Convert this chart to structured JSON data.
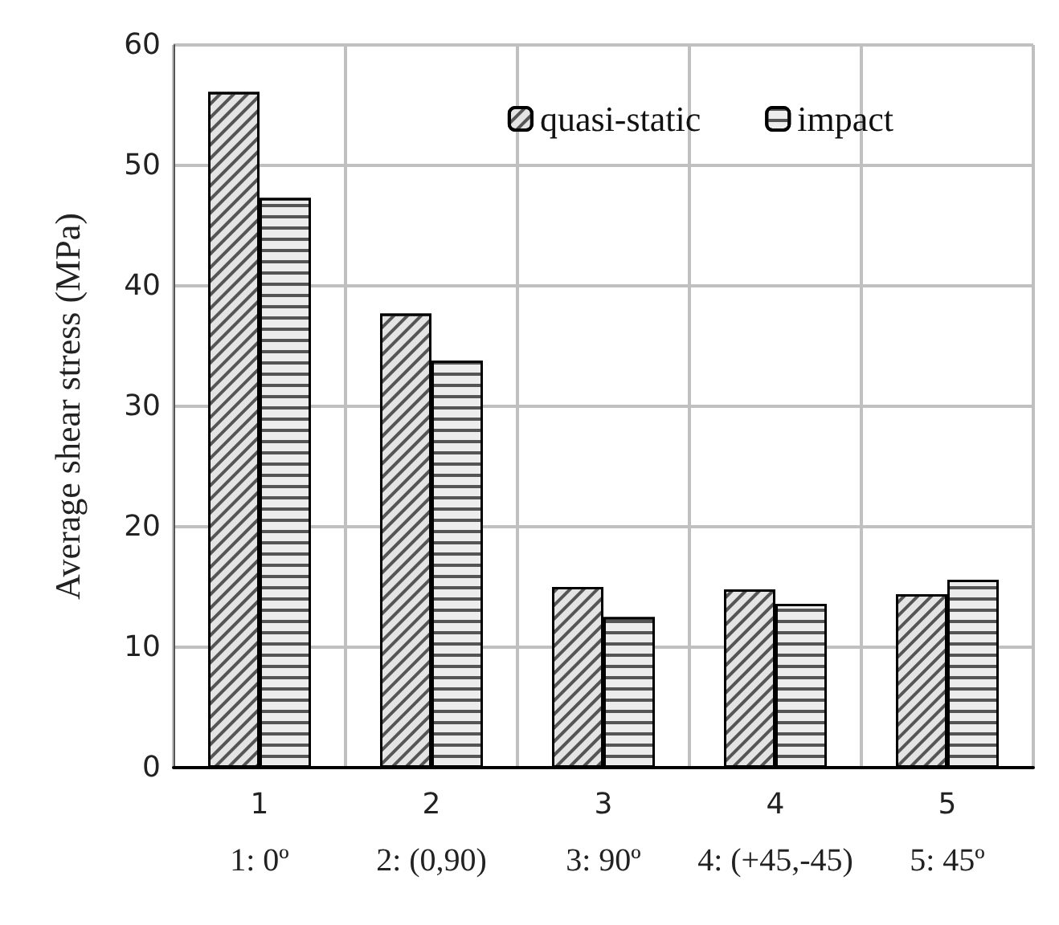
{
  "chart_data": {
    "type": "bar",
    "ylabel": "Average shear stress (MPa)",
    "categories": [
      "1",
      "2",
      "3",
      "4",
      "5"
    ],
    "series": [
      {
        "name": "quasi-static",
        "color": "#e4e4e4",
        "values": [
          56.1,
          37.7,
          15.0,
          14.8,
          14.4
        ]
      },
      {
        "name": "impact",
        "color": "#ececec",
        "values": [
          47.3,
          33.8,
          12.5,
          13.6,
          15.6
        ]
      }
    ],
    "annotations": [
      "1: 0º",
      "2: (0,90)",
      "3: 90º",
      "4: (+45,-45)",
      "5: 45º"
    ],
    "ylim": [
      0,
      60
    ],
    "yticks": [
      0,
      10,
      20,
      30,
      40,
      50,
      60
    ],
    "grid": true,
    "legend": "top right"
  }
}
